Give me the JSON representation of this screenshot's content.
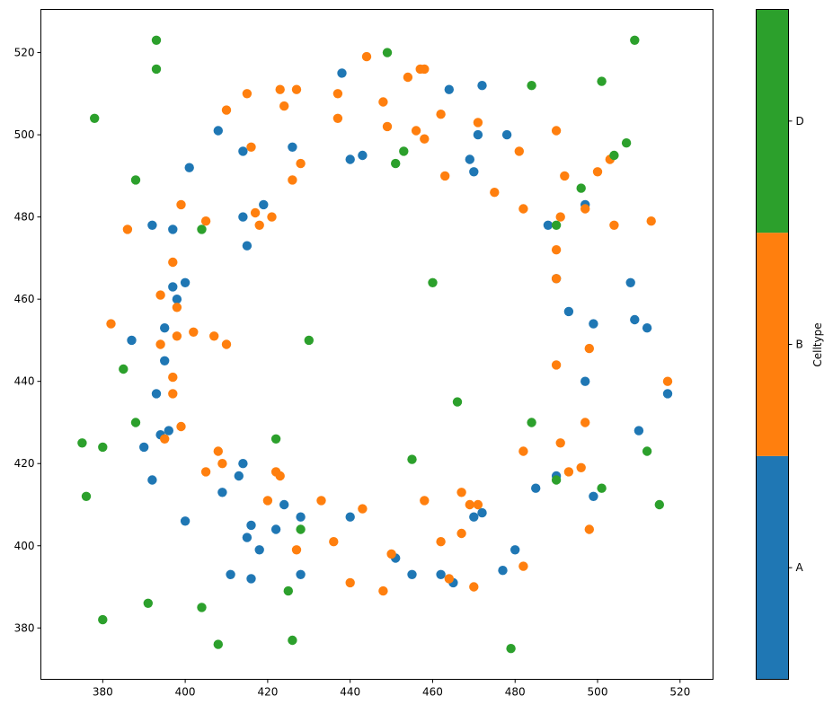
{
  "chart_data": {
    "type": "scatter",
    "title": "",
    "xlabel": "",
    "ylabel": "",
    "xlim": [
      365,
      528
    ],
    "ylim": [
      367.5,
      530.5
    ],
    "xticks": [
      380,
      400,
      420,
      440,
      460,
      480,
      500,
      520
    ],
    "yticks": [
      380,
      400,
      420,
      440,
      460,
      480,
      500,
      520
    ],
    "grid": false,
    "colorbar": {
      "label": "Celltype",
      "categories": [
        "A",
        "B",
        "D"
      ],
      "colors": [
        "#1f77b4",
        "#ff7f0e",
        "#2ca02c"
      ]
    },
    "series": [
      {
        "category": "A",
        "color": "#1f77b4",
        "points": [
          [
            392,
            478
          ],
          [
            397,
            477
          ],
          [
            401,
            492
          ],
          [
            408,
            501
          ],
          [
            414,
            496
          ],
          [
            414,
            480
          ],
          [
            415,
            473
          ],
          [
            419,
            483
          ],
          [
            426,
            497
          ],
          [
            438,
            515
          ],
          [
            440,
            494
          ],
          [
            443,
            495
          ],
          [
            464,
            511
          ],
          [
            469,
            494
          ],
          [
            470,
            491
          ],
          [
            471,
            500
          ],
          [
            472,
            512
          ],
          [
            478,
            500
          ],
          [
            488,
            478
          ],
          [
            490,
            465
          ],
          [
            493,
            457
          ],
          [
            497,
            483
          ],
          [
            499,
            454
          ],
          [
            508,
            464
          ],
          [
            509,
            455
          ],
          [
            512,
            453
          ],
          [
            397,
            463
          ],
          [
            398,
            460
          ],
          [
            400,
            464
          ],
          [
            395,
            453
          ],
          [
            387,
            450
          ],
          [
            395,
            445
          ],
          [
            497,
            440
          ],
          [
            517,
            437
          ],
          [
            510,
            428
          ],
          [
            393,
            437
          ],
          [
            394,
            427
          ],
          [
            396,
            428
          ],
          [
            390,
            424
          ],
          [
            392,
            416
          ],
          [
            409,
            413
          ],
          [
            413,
            417
          ],
          [
            414,
            420
          ],
          [
            400,
            406
          ],
          [
            416,
            405
          ],
          [
            418,
            399
          ],
          [
            415,
            402
          ],
          [
            416,
            392
          ],
          [
            411,
            393
          ],
          [
            422,
            404
          ],
          [
            424,
            410
          ],
          [
            428,
            407
          ],
          [
            428,
            393
          ],
          [
            440,
            407
          ],
          [
            451,
            397
          ],
          [
            455,
            393
          ],
          [
            462,
            393
          ],
          [
            465,
            391
          ],
          [
            470,
            407
          ],
          [
            472,
            408
          ],
          [
            477,
            394
          ],
          [
            480,
            399
          ],
          [
            485,
            414
          ],
          [
            490,
            417
          ],
          [
            499,
            412
          ]
        ]
      },
      {
        "category": "B",
        "color": "#ff7f0e",
        "points": [
          [
            444,
            519
          ],
          [
            457,
            516
          ],
          [
            458,
            516
          ],
          [
            454,
            514
          ],
          [
            448,
            508
          ],
          [
            423,
            511
          ],
          [
            427,
            511
          ],
          [
            415,
            510
          ],
          [
            437,
            510
          ],
          [
            410,
            506
          ],
          [
            424,
            507
          ],
          [
            437,
            504
          ],
          [
            449,
            502
          ],
          [
            456,
            501
          ],
          [
            462,
            505
          ],
          [
            471,
            503
          ],
          [
            458,
            499
          ],
          [
            490,
            501
          ],
          [
            416,
            497
          ],
          [
            481,
            496
          ],
          [
            428,
            493
          ],
          [
            426,
            489
          ],
          [
            463,
            490
          ],
          [
            492,
            490
          ],
          [
            500,
            491
          ],
          [
            503,
            494
          ],
          [
            475,
            486
          ],
          [
            399,
            483
          ],
          [
            482,
            482
          ],
          [
            497,
            482
          ],
          [
            417,
            481
          ],
          [
            418,
            478
          ],
          [
            421,
            480
          ],
          [
            405,
            479
          ],
          [
            386,
            477
          ],
          [
            491,
            480
          ],
          [
            504,
            478
          ],
          [
            513,
            479
          ],
          [
            490,
            472
          ],
          [
            397,
            469
          ],
          [
            394,
            461
          ],
          [
            398,
            458
          ],
          [
            490,
            465
          ],
          [
            382,
            454
          ],
          [
            398,
            451
          ],
          [
            402,
            452
          ],
          [
            407,
            451
          ],
          [
            410,
            449
          ],
          [
            394,
            449
          ],
          [
            498,
            448
          ],
          [
            397,
            441
          ],
          [
            397,
            437
          ],
          [
            490,
            444
          ],
          [
            517,
            440
          ],
          [
            399,
            429
          ],
          [
            497,
            430
          ],
          [
            395,
            426
          ],
          [
            491,
            425
          ],
          [
            408,
            423
          ],
          [
            482,
            423
          ],
          [
            405,
            418
          ],
          [
            409,
            420
          ],
          [
            422,
            418
          ],
          [
            423,
            417
          ],
          [
            496,
            419
          ],
          [
            493,
            418
          ],
          [
            420,
            411
          ],
          [
            433,
            411
          ],
          [
            443,
            409
          ],
          [
            458,
            411
          ],
          [
            467,
            413
          ],
          [
            469,
            410
          ],
          [
            471,
            410
          ],
          [
            427,
            399
          ],
          [
            436,
            401
          ],
          [
            462,
            401
          ],
          [
            467,
            403
          ],
          [
            482,
            395
          ],
          [
            450,
            398
          ],
          [
            440,
            391
          ],
          [
            448,
            389
          ],
          [
            464,
            392
          ],
          [
            470,
            390
          ],
          [
            498,
            404
          ]
        ]
      },
      {
        "category": "D",
        "color": "#2ca02c",
        "points": [
          [
            393,
            523
          ],
          [
            509,
            523
          ],
          [
            393,
            516
          ],
          [
            449,
            520
          ],
          [
            501,
            513
          ],
          [
            378,
            504
          ],
          [
            484,
            512
          ],
          [
            507,
            498
          ],
          [
            504,
            495
          ],
          [
            453,
            496
          ],
          [
            451,
            493
          ],
          [
            388,
            489
          ],
          [
            496,
            487
          ],
          [
            404,
            477
          ],
          [
            490,
            478
          ],
          [
            460,
            464
          ],
          [
            430,
            450
          ],
          [
            385,
            443
          ],
          [
            388,
            430
          ],
          [
            466,
            435
          ],
          [
            484,
            430
          ],
          [
            375,
            425
          ],
          [
            380,
            424
          ],
          [
            422,
            426
          ],
          [
            512,
            423
          ],
          [
            455,
            421
          ],
          [
            376,
            412
          ],
          [
            490,
            416
          ],
          [
            501,
            414
          ],
          [
            515,
            410
          ],
          [
            428,
            404
          ],
          [
            391,
            386
          ],
          [
            404,
            385
          ],
          [
            425,
            389
          ],
          [
            380,
            382
          ],
          [
            408,
            376
          ],
          [
            426,
            377
          ],
          [
            479,
            375
          ]
        ]
      }
    ]
  }
}
